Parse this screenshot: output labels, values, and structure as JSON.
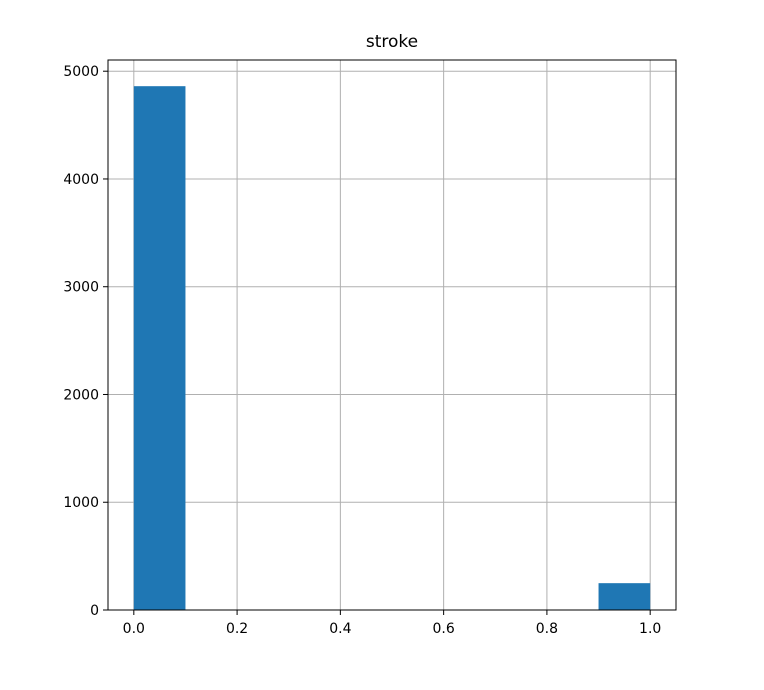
{
  "chart_data": {
    "type": "bar",
    "title": "stroke",
    "xlabel": "",
    "ylabel": "",
    "xlim": [
      -0.05,
      1.05
    ],
    "ylim": [
      0,
      5104
    ],
    "grid": true,
    "bar_color": "#1f77b4",
    "bins": [
      {
        "x0": 0.0,
        "x1": 0.1,
        "value": 4861
      },
      {
        "x0": 0.1,
        "x1": 0.2,
        "value": 0
      },
      {
        "x0": 0.2,
        "x1": 0.3,
        "value": 0
      },
      {
        "x0": 0.3,
        "x1": 0.4,
        "value": 0
      },
      {
        "x0": 0.4,
        "x1": 0.5,
        "value": 0
      },
      {
        "x0": 0.5,
        "x1": 0.6,
        "value": 0
      },
      {
        "x0": 0.6,
        "x1": 0.7,
        "value": 0
      },
      {
        "x0": 0.7,
        "x1": 0.8,
        "value": 0
      },
      {
        "x0": 0.8,
        "x1": 0.9,
        "value": 0
      },
      {
        "x0": 0.9,
        "x1": 1.0,
        "value": 249
      }
    ],
    "xticks": [
      {
        "value": 0.0,
        "label": "0.0"
      },
      {
        "value": 0.2,
        "label": "0.2"
      },
      {
        "value": 0.4,
        "label": "0.4"
      },
      {
        "value": 0.6,
        "label": "0.6"
      },
      {
        "value": 0.8,
        "label": "0.8"
      },
      {
        "value": 1.0,
        "label": "1.0"
      }
    ],
    "yticks": [
      {
        "value": 0,
        "label": "0"
      },
      {
        "value": 1000,
        "label": "1000"
      },
      {
        "value": 2000,
        "label": "2000"
      },
      {
        "value": 3000,
        "label": "3000"
      },
      {
        "value": 4000,
        "label": "4000"
      },
      {
        "value": 5000,
        "label": "5000"
      }
    ]
  }
}
